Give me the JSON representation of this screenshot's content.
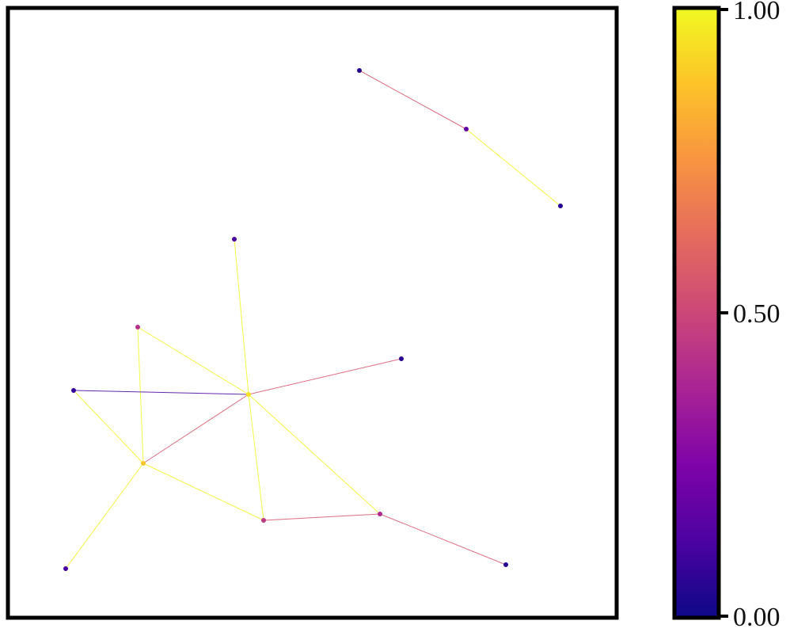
{
  "graph": {
    "nodes": [
      {
        "id": "n1",
        "value": 0.05
      },
      {
        "id": "n2",
        "value": 0.18
      },
      {
        "id": "n3",
        "value": 0.05
      },
      {
        "id": "n4",
        "value": 0.12
      },
      {
        "id": "n5",
        "value": 0.42
      },
      {
        "id": "n6",
        "value": 0.05
      },
      {
        "id": "n7",
        "value": 0.08
      },
      {
        "id": "n8",
        "value": 0.95
      },
      {
        "id": "n9",
        "value": 0.88
      },
      {
        "id": "n10",
        "value": 0.45
      },
      {
        "id": "n11",
        "value": 0.4
      },
      {
        "id": "n12",
        "value": 0.12
      },
      {
        "id": "n13",
        "value": 0.05
      }
    ],
    "edges": [
      {
        "source": "n1",
        "target": "n2",
        "value": 0.55
      },
      {
        "source": "n2",
        "target": "n3",
        "value": 1.0
      },
      {
        "source": "n4",
        "target": "n8",
        "value": 1.0
      },
      {
        "source": "n5",
        "target": "n8",
        "value": 1.0
      },
      {
        "source": "n5",
        "target": "n9",
        "value": 1.0
      },
      {
        "source": "n7",
        "target": "n8",
        "value": 0.12
      },
      {
        "source": "n8",
        "target": "n6",
        "value": 0.55
      },
      {
        "source": "n8",
        "target": "n9",
        "value": 0.55
      },
      {
        "source": "n8",
        "target": "n10",
        "value": 1.0
      },
      {
        "source": "n8",
        "target": "n11",
        "value": 1.0
      },
      {
        "source": "n7",
        "target": "n9",
        "value": 1.0
      },
      {
        "source": "n9",
        "target": "n10",
        "value": 1.0
      },
      {
        "source": "n9",
        "target": "n12",
        "value": 1.0
      },
      {
        "source": "n10",
        "target": "n11",
        "value": 0.55
      },
      {
        "source": "n11",
        "target": "n13",
        "value": 0.55
      }
    ]
  },
  "colorbar": {
    "colormap": "plasma",
    "min": 0,
    "max": 1,
    "ticks": [
      {
        "value": 1.0,
        "label": "1.00"
      },
      {
        "value": 0.5,
        "label": "0.50"
      },
      {
        "value": 0.0,
        "label": "0.00"
      }
    ]
  }
}
